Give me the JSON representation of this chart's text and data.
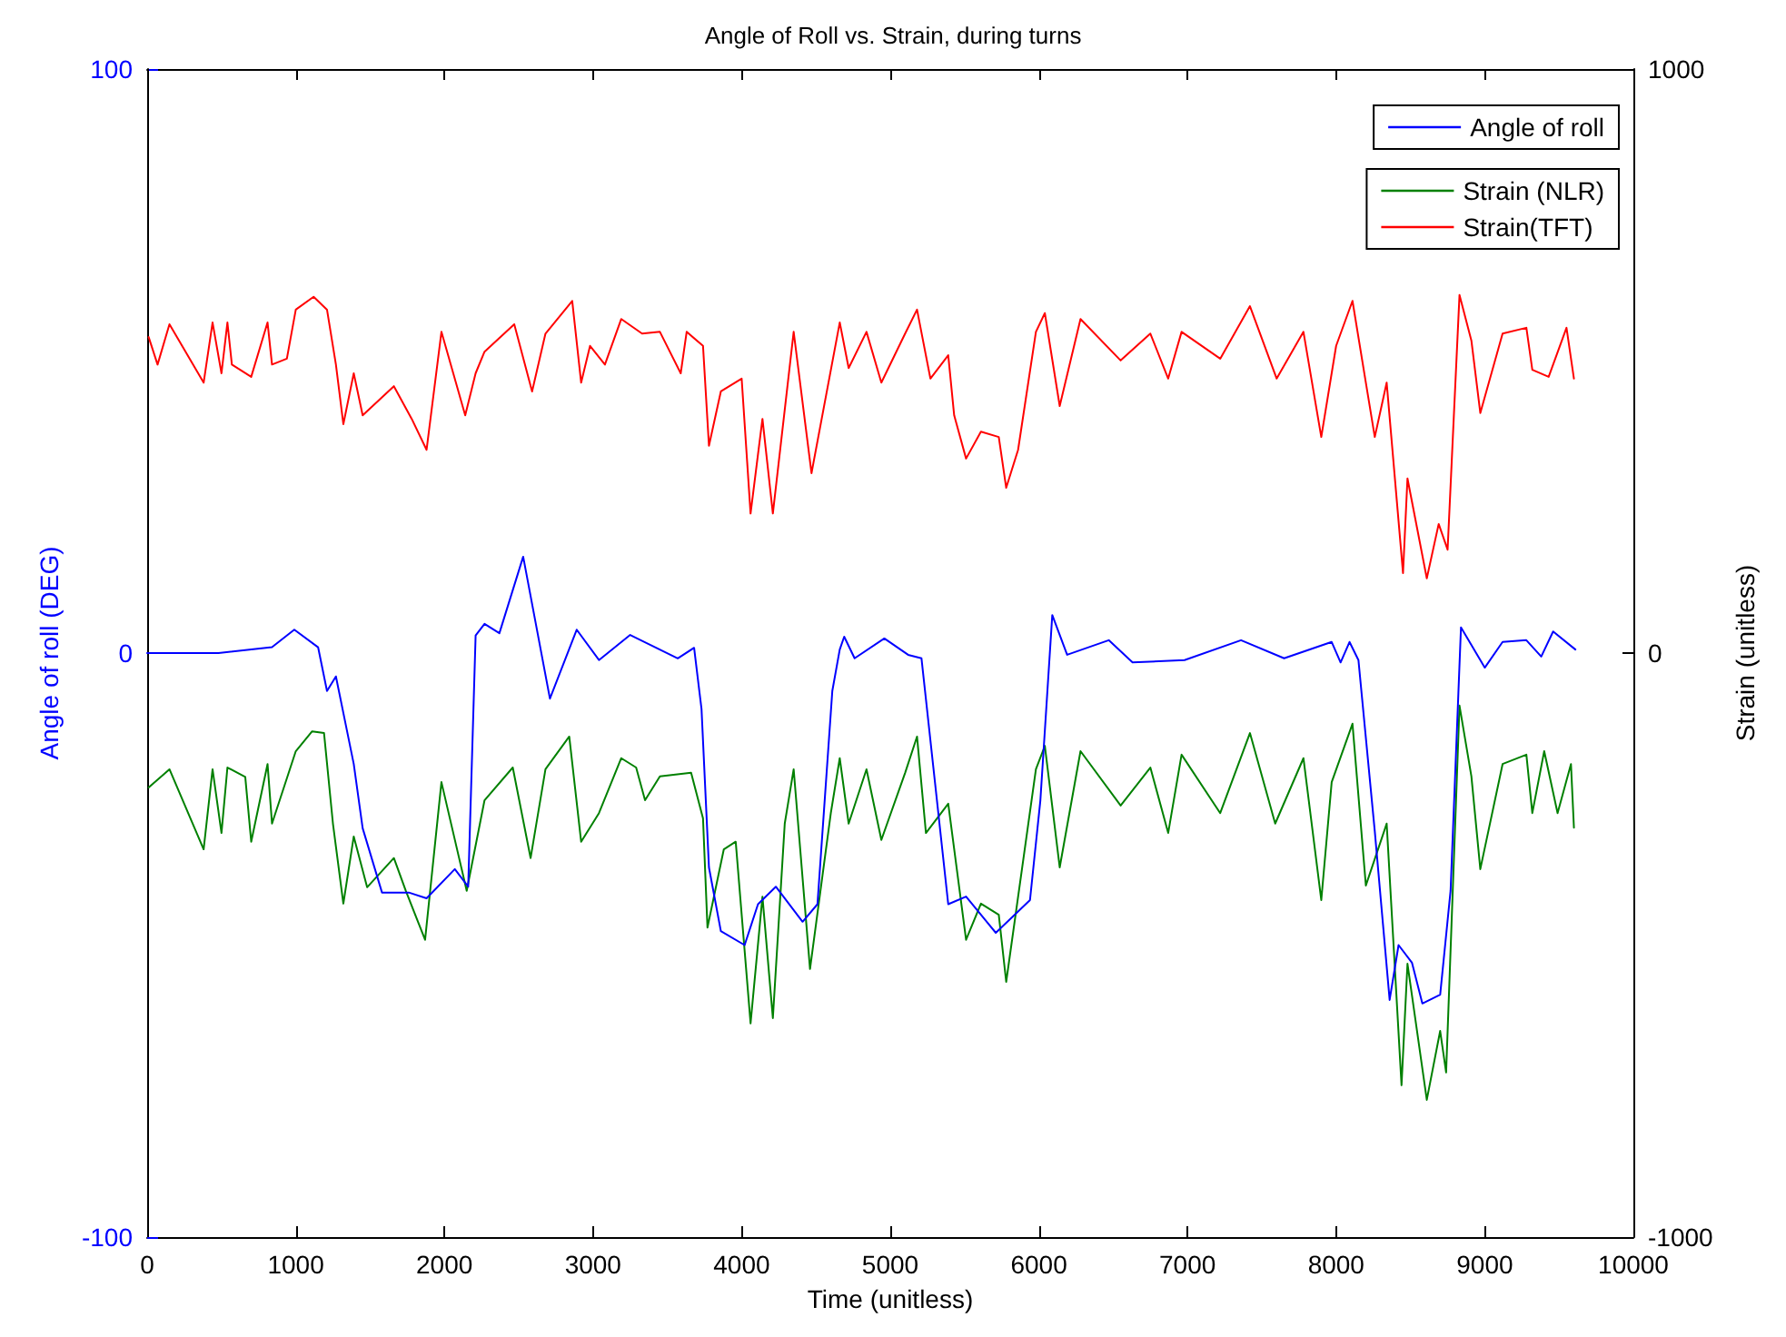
{
  "chart_data": {
    "type": "line",
    "title": "Angle of Roll vs. Strain, during turns",
    "xlabel": "Time (unitless)",
    "ylabel": "Angle of roll (DEG)",
    "y2label": "Strain (unitless)",
    "xlim": [
      0,
      10000
    ],
    "xticks": [
      0,
      1000,
      2000,
      3000,
      4000,
      5000,
      6000,
      7000,
      8000,
      9000,
      10000
    ],
    "ylim": [
      -100,
      100
    ],
    "yticks": [
      -100,
      0,
      100
    ],
    "y2lim": [
      -1000,
      1000
    ],
    "y2ticks": [
      -1000,
      0,
      1000
    ],
    "grid": false,
    "legend": "top right",
    "marker": "none",
    "line_style": "solid",
    "series": [
      {
        "name": "Angle of roll",
        "color": "#0000ff",
        "x": [
          0,
          480,
          840,
          990,
          1150,
          1210,
          1270,
          1390,
          1450,
          1580,
          1760,
          1880,
          2070,
          2160,
          2210,
          2270,
          2370,
          2530,
          2710,
          2890,
          3040,
          3250,
          3570,
          3680,
          3730,
          3780,
          3860,
          4020,
          4110,
          4230,
          4410,
          4510,
          4610,
          4660,
          4690,
          4760,
          4960,
          5120,
          5210,
          5390,
          5510,
          5710,
          5940,
          6010,
          6090,
          6190,
          6470,
          6630,
          6980,
          7360,
          7650,
          7970,
          8030,
          8090,
          8150,
          8260,
          8360,
          8420,
          8510,
          8580,
          8700,
          8770,
          8840,
          9000,
          9120,
          9280,
          9380,
          9460,
          9610
        ],
        "values": [
          0,
          0,
          1,
          4,
          1,
          -6.5,
          -4,
          -19,
          -30,
          -41,
          -41,
          -42,
          -37,
          -40,
          3,
          5,
          3.4,
          16.5,
          -7.8,
          4,
          -1.2,
          3.1,
          -0.9,
          0.9,
          -9.6,
          -36.7,
          -47.6,
          -50,
          -43,
          -40,
          -46,
          -43,
          -6.5,
          0.6,
          2.8,
          -0.9,
          2.5,
          -0.3,
          -0.9,
          -43,
          -41.7,
          -47.9,
          -42.3,
          -25.2,
          6.5,
          -0.3,
          2.2,
          -1.6,
          -1.2,
          2.2,
          -0.9,
          1.9,
          -1.6,
          1.9,
          -1.2,
          -30.5,
          -59.4,
          -50,
          -53,
          -60,
          -58.5,
          -40.7,
          4.4,
          -2.5,
          1.9,
          2.2,
          -0.6,
          3.7,
          0.6
        ]
      },
      {
        "name": "Strain (NLR)",
        "color": "#008000",
        "axis": "y2",
        "x": [
          10,
          150,
          380,
          440,
          500,
          540,
          660,
          700,
          810,
          840,
          1000,
          1110,
          1190,
          1250,
          1320,
          1390,
          1480,
          1660,
          1740,
          1870,
          1980,
          2150,
          2270,
          2460,
          2580,
          2680,
          2840,
          2920,
          3040,
          3190,
          3290,
          3350,
          3450,
          3660,
          3740,
          3770,
          3880,
          3960,
          4060,
          4140,
          4210,
          4290,
          4350,
          4460,
          4600,
          4660,
          4720,
          4840,
          4940,
          5100,
          5180,
          5240,
          5390,
          5510,
          5610,
          5730,
          5780,
          5980,
          6040,
          6140,
          6280,
          6550,
          6750,
          6870,
          6960,
          7220,
          7420,
          7590,
          7780,
          7900,
          7970,
          8110,
          8200,
          8340,
          8440,
          8480,
          8610,
          8700,
          8740,
          8830,
          8910,
          8970,
          9120,
          9280,
          9320,
          9400,
          9490,
          9580,
          9600
        ],
        "values": [
          -230,
          -199,
          -336,
          -199,
          -308,
          -196,
          -212,
          -323,
          -190,
          -292,
          -168,
          -134,
          -137,
          -292,
          -429,
          -314,
          -401,
          -351,
          -407,
          -491,
          -221,
          -407,
          -252,
          -196,
          -351,
          -199,
          -143,
          -323,
          -274,
          -180,
          -196,
          -252,
          -211,
          -205,
          -283,
          -470,
          -336,
          -323,
          -634,
          -417,
          -625,
          -292,
          -199,
          -541,
          -274,
          -180,
          -292,
          -199,
          -320,
          -205,
          -143,
          -308,
          -258,
          -491,
          -429,
          -448,
          -563,
          -199,
          -159,
          -367,
          -168,
          -261,
          -196,
          -308,
          -174,
          -274,
          -137,
          -292,
          -180,
          -423,
          -221,
          -121,
          -398,
          -292,
          -740,
          -532,
          -765,
          -647,
          -718,
          -90,
          -211,
          -370,
          -190,
          -174,
          -274,
          -168,
          -274,
          -190,
          -299
        ]
      },
      {
        "name": "Strain(TFT)",
        "color": "#ff0000",
        "axis": "y2",
        "x": [
          10,
          70,
          150,
          380,
          440,
          500,
          540,
          570,
          700,
          810,
          840,
          940,
          1000,
          1120,
          1210,
          1270,
          1320,
          1390,
          1450,
          1660,
          1780,
          1880,
          1980,
          2140,
          2210,
          2270,
          2470,
          2590,
          2680,
          2860,
          2920,
          2980,
          3080,
          3190,
          3330,
          3450,
          3590,
          3630,
          3740,
          3780,
          3860,
          4000,
          4060,
          4140,
          4210,
          4350,
          4470,
          4660,
          4720,
          4840,
          4940,
          5100,
          5180,
          5270,
          5390,
          5430,
          5510,
          5610,
          5730,
          5780,
          5860,
          5980,
          6040,
          6140,
          6280,
          6550,
          6750,
          6870,
          6960,
          7220,
          7420,
          7600,
          7780,
          7900,
          8000,
          8110,
          8200,
          8260,
          8340,
          8450,
          8480,
          8610,
          8690,
          8750,
          8830,
          8910,
          8970,
          9120,
          9280,
          9320,
          9430,
          9550,
          9600
        ],
        "values": [
          541,
          494,
          563,
          463,
          566,
          479,
          566,
          494,
          473,
          566,
          494,
          504,
          588,
          610,
          588,
          494,
          392,
          479,
          407,
          457,
          401,
          348,
          550,
          407,
          479,
          516,
          563,
          448,
          547,
          603,
          463,
          526,
          494,
          572,
          547,
          550,
          479,
          550,
          526,
          355,
          448,
          470,
          239,
          401,
          239,
          550,
          308,
          566,
          488,
          550,
          463,
          547,
          588,
          470,
          510,
          407,
          333,
          379,
          370,
          283,
          348,
          550,
          582,
          423,
          572,
          501,
          547,
          470,
          550,
          504,
          594,
          470,
          550,
          370,
          526,
          603,
          463,
          370,
          463,
          137,
          299,
          128,
          221,
          177,
          613,
          535,
          411,
          547,
          557,
          485,
          473,
          557,
          470
        ]
      }
    ]
  }
}
